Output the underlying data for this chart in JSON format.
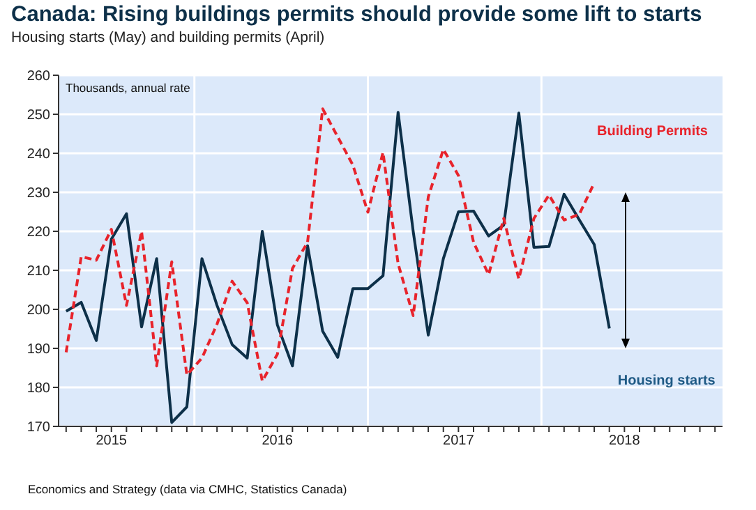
{
  "chart_data": {
    "type": "line",
    "title": "Canada: Rising buildings permits should provide some lift to starts",
    "subtitle": "Housing starts (May) and building permits (April)",
    "ylabel": "Thousands, annual rate",
    "annotations": [
      "Economics and Strategy (data via CMHC, Statistics Canada)"
    ],
    "categories": [
      null,
      null,
      null,
      "2015",
      null,
      null,
      null,
      null,
      null,
      null,
      null,
      null,
      null,
      null,
      "2016",
      null,
      null,
      null,
      null,
      null,
      null,
      null,
      null,
      null,
      null,
      null,
      "2017",
      null,
      null,
      null,
      null,
      null,
      null,
      null,
      null,
      null,
      null,
      "2018",
      null,
      null,
      null,
      null,
      null,
      null
    ],
    "series": [
      {
        "name": "Housing starts",
        "color": "#0d3049",
        "line_style": "solid",
        "values": [
          199.5,
          201.8,
          192,
          218,
          224.5,
          195.5,
          213,
          171,
          175,
          213,
          201,
          191,
          187.5,
          220,
          196,
          185.5,
          216.3,
          194.4,
          187.7,
          205.3,
          205.3,
          208.6,
          250.5,
          220,
          193.4,
          213,
          225,
          225.2,
          218.8,
          221.6,
          250.3,
          215.9,
          216.1,
          229.5,
          223,
          216.6,
          195.1,
          null,
          null,
          null,
          null,
          null,
          null,
          null
        ]
      },
      {
        "name": "Building Permits",
        "color": "#e8232b",
        "line_style": "dashed",
        "values": [
          189,
          213.5,
          212.6,
          220.5,
          201,
          220,
          185.5,
          212.2,
          183.2,
          187.5,
          196.2,
          207.2,
          201.7,
          181.6,
          188.5,
          210.5,
          217.2,
          251.4,
          244.2,
          237,
          224.9,
          240.2,
          211.7,
          198.4,
          228.8,
          241,
          234.3,
          217.2,
          208.9,
          223.3,
          207.8,
          223.3,
          229.3,
          222.9,
          224.3,
          232.4,
          null,
          null,
          null,
          null,
          null,
          null,
          null,
          null
        ]
      }
    ],
    "ylim": [
      170,
      260
    ],
    "yticks": [
      170,
      180,
      190,
      200,
      210,
      220,
      230,
      240,
      250,
      260
    ],
    "grid": true,
    "marker": "none"
  }
}
